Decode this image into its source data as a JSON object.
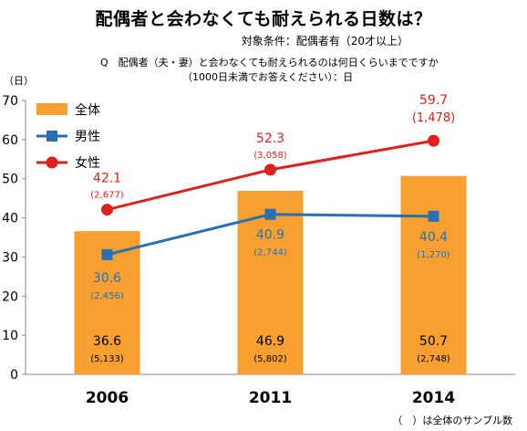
{
  "title": "配偶者と会わなくても耐えられる日数は？",
  "subtitle": "対象条件：配偶者有（20才以上）",
  "question_line1": "Q　配偶者（夫・妻）と会わなくても耐えられるのは何日くらいまでですか",
  "question_line2": "（1000日未満でお答えください）：日",
  "footnote": "（　）は全体のサンプル数",
  "chart_data": {
    "type": "bar",
    "y_unit_label": "（日）",
    "ylim": [
      0,
      70
    ],
    "y_ticks": [
      "0",
      "10",
      "20",
      "30",
      "40",
      "50",
      "60",
      "70"
    ],
    "categories": [
      "2006",
      "2011",
      "2014"
    ],
    "grid": false,
    "legend_position": "top-left",
    "series": [
      {
        "name": "全体",
        "type": "bar",
        "color": "#f7a030",
        "values": [
          36.6,
          46.9,
          50.7
        ],
        "value_labels": [
          "36.6",
          "46.9",
          "50.7"
        ],
        "n_labels": [
          "(5,133)",
          "(5,802)",
          "(2,748)"
        ],
        "label_color": "#000000"
      },
      {
        "name": "男性",
        "type": "line",
        "color": "#2a6fb5",
        "marker": "square",
        "values": [
          30.6,
          40.9,
          40.4
        ],
        "value_labels": [
          "30.6",
          "40.9",
          "40.4"
        ],
        "n_labels": [
          "(2,456)",
          "(2,744)",
          "(1,270)"
        ],
        "label_color": "#2a6fb5"
      },
      {
        "name": "女性",
        "type": "line",
        "color": "#e0201a",
        "marker": "circle",
        "values": [
          42.1,
          52.3,
          59.7
        ],
        "value_labels": [
          "42.1",
          "52.3",
          "59.7"
        ],
        "n_labels": [
          "(2,677)",
          "(3,058)",
          "(1,478)"
        ],
        "label_color": "#e0201a"
      }
    ]
  }
}
